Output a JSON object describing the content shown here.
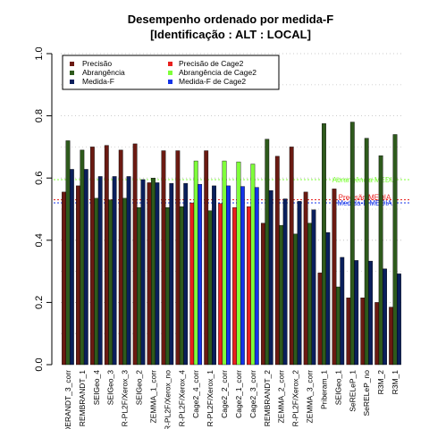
{
  "chart_data": {
    "type": "bar",
    "title": "Desempenho ordenado por medida-F",
    "subtitle": "[Identificação : ALT : LOCAL]",
    "ylim": [
      0,
      1
    ],
    "yticks": [
      "0.0",
      "0.2",
      "0.4",
      "0.6",
      "0.8",
      "1.0"
    ],
    "grid": true,
    "legend_position": "top-left",
    "categories": [
      "RENDERANDT_3_corr",
      "REMBRANDT_1",
      "SEIGeo_4",
      "SEIGeo_3",
      "R-PL2F/Xerox_3",
      "SEIGeo_2",
      "ZEMMA_1_corr",
      "R-PL2F/Xerox_no",
      "R-PL2F/Xerox_4",
      "Cage2_4_corr",
      "R-PL2F/Xerox_1",
      "Cage2_2_corr",
      "Cage2_1_corr",
      "Cage2_3_corr",
      "REMBRANDT_2",
      "ZEMMA_2_corr",
      "R-PL2F/Xerox_2",
      "ZEMMA_3_corr",
      "Priberam_1",
      "SEIGeo_1",
      "SeRELeP_1",
      "SeRELeP_no",
      "R3M_2",
      "R3M_1"
    ],
    "cage2_indices": [
      9,
      11,
      12,
      13
    ],
    "series": [
      {
        "name": "Precisão",
        "color": "#6b1a12",
        "values": [
          0.555,
          0.575,
          0.7,
          0.705,
          0.69,
          0.71,
          0.585,
          0.688,
          0.688,
          0.52,
          0.688,
          0.518,
          0.505,
          0.508,
          0.455,
          0.67,
          0.7,
          0.555,
          0.295,
          0.565,
          0.215,
          0.215,
          0.2,
          0.185
        ]
      },
      {
        "name": "Abrangência",
        "color": "#2e5a1c",
        "values": [
          0.72,
          0.69,
          0.535,
          0.53,
          0.535,
          0.505,
          0.6,
          0.505,
          0.508,
          0.655,
          0.495,
          0.655,
          0.652,
          0.645,
          0.725,
          0.448,
          0.42,
          0.455,
          0.775,
          0.25,
          0.78,
          0.728,
          0.672,
          0.74
        ]
      },
      {
        "name": "Medida-F",
        "color": "#0a1f5c",
        "values": [
          0.628,
          0.628,
          0.605,
          0.605,
          0.605,
          0.595,
          0.585,
          0.583,
          0.583,
          0.58,
          0.575,
          0.575,
          0.573,
          0.57,
          0.56,
          0.533,
          0.525,
          0.498,
          0.425,
          0.345,
          0.335,
          0.333,
          0.308,
          0.292
        ]
      }
    ],
    "cage2_series": [
      {
        "name": "Precisão  de  Cage2",
        "color": "#e8201e"
      },
      {
        "name": "Abrangência  de  Cage2",
        "color": "#7fff3a"
      },
      {
        "name": "Medida-F  de  Cage2",
        "color": "#1433e8"
      }
    ],
    "reference_lines": [
      {
        "label": "Abrangência MEDIA",
        "value": 0.595,
        "color": "#7fff3a"
      },
      {
        "label": "Precisão MEDIA",
        "value": 0.53,
        "color": "#e8201e"
      },
      {
        "label": "Medida-F MEDIA",
        "value": 0.52,
        "color": "#1433e8"
      }
    ]
  }
}
